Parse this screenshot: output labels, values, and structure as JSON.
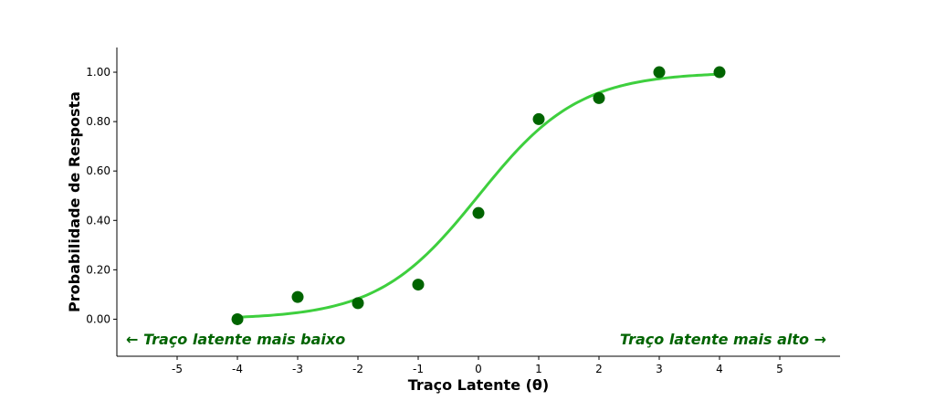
{
  "chart_data": {
    "type": "scatter",
    "xlabel": "Traço Latente (θ)",
    "ylabel": "Probabilidade de Resposta",
    "xlim": [
      -6,
      6
    ],
    "ylim": [
      -0.15,
      1.1
    ],
    "x_ticks": [
      -5,
      -4,
      -3,
      -2,
      -1,
      0,
      1,
      2,
      3,
      4,
      5
    ],
    "x_tick_labels": [
      "-5",
      "-4",
      "-3",
      "-2",
      "-1",
      "0",
      "1",
      "2",
      "3",
      "4",
      "5"
    ],
    "y_ticks": [
      0,
      0.2,
      0.4,
      0.6,
      0.8,
      1.0
    ],
    "y_tick_labels": [
      "0.00",
      "0.20",
      "0.40",
      "0.60",
      "0.80",
      "1.00"
    ],
    "grid": false,
    "series": [
      {
        "kind": "scatter",
        "color": "#006400",
        "x": [
          -4,
          -3,
          -2,
          -1,
          0,
          1,
          2,
          3,
          4
        ],
        "y": [
          0.0,
          0.09,
          0.065,
          0.14,
          0.43,
          0.81,
          0.895,
          1.0,
          1.0
        ]
      },
      {
        "kind": "line",
        "color": "#3ecf3e",
        "curve": "logistic",
        "a": 1.2,
        "b": 0.0,
        "x_range": [
          -4,
          4
        ]
      }
    ],
    "annotations": [
      {
        "text": "← Traço latente mais baixo",
        "position": "bottom-left",
        "color": "#006400"
      },
      {
        "text": "Traço latente mais alto →",
        "position": "bottom-right",
        "color": "#006400"
      }
    ]
  }
}
